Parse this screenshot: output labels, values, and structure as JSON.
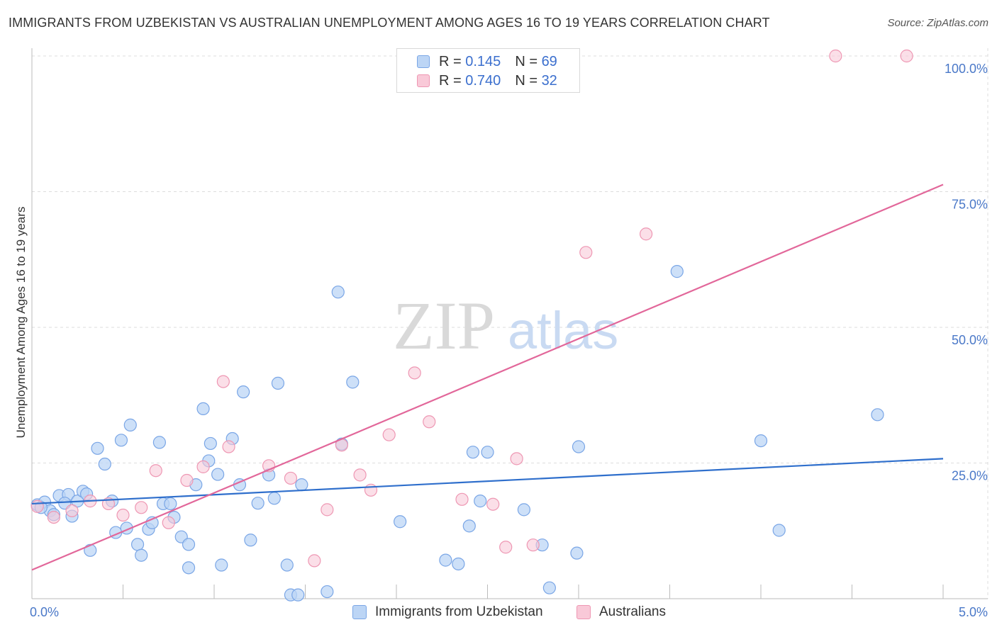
{
  "title": "IMMIGRANTS FROM UZBEKISTAN VS AUSTRALIAN UNEMPLOYMENT AMONG AGES 16 TO 19 YEARS CORRELATION CHART",
  "source": "Source: ZipAtlas.com",
  "watermark": {
    "zip": "ZIP",
    "atlas": "atlas"
  },
  "legend": {
    "r_label": "R =",
    "n_label": "N =",
    "series": [
      {
        "name": "Immigrants from Uzbekistan",
        "r": "0.145",
        "n": "69"
      },
      {
        "name": "Australians",
        "r": "0.740",
        "n": "32"
      }
    ]
  },
  "colors": {
    "blue_fill": "#bcd5f5",
    "blue_stroke": "#7aa6e6",
    "blue_line": "#2f6fcc",
    "pink_fill": "#f9c9d8",
    "pink_stroke": "#ee97b3",
    "pink_line": "#e2679a",
    "tick_text": "#4a78c8",
    "grid": "#dddddd"
  },
  "chart_data": {
    "type": "scatter",
    "title": "IMMIGRANTS FROM UZBEKISTAN VS AUSTRALIAN UNEMPLOYMENT AMONG AGES 16 TO 19 YEARS CORRELATION CHART",
    "xlabel": "",
    "ylabel": "Unemployment Among Ages 16 to 19 years",
    "xlim": [
      0,
      5
    ],
    "ylim": [
      0,
      100
    ],
    "x_tick_labels": [
      "0.0%",
      "5.0%"
    ],
    "y_ticks": [
      25,
      50,
      75,
      100
    ],
    "y_tick_labels": [
      "25.0%",
      "50.0%",
      "75.0%",
      "100.0%"
    ],
    "series": [
      {
        "name": "Immigrants from Uzbekistan",
        "trend": {
          "x0": 0,
          "y0": 17.5,
          "x1": 5,
          "y1": 25.8
        },
        "points": [
          [
            0.03,
            17.3
          ],
          [
            0.07,
            17.8
          ],
          [
            0.1,
            16.2
          ],
          [
            0.12,
            15.5
          ],
          [
            0.15,
            19.0
          ],
          [
            0.2,
            19.2
          ],
          [
            0.22,
            15.2
          ],
          [
            0.25,
            18.0
          ],
          [
            0.28,
            19.8
          ],
          [
            0.3,
            19.3
          ],
          [
            0.32,
            8.9
          ],
          [
            0.36,
            27.7
          ],
          [
            0.4,
            24.8
          ],
          [
            0.44,
            18.0
          ],
          [
            0.46,
            12.2
          ],
          [
            0.49,
            29.2
          ],
          [
            0.52,
            13.0
          ],
          [
            0.54,
            32.0
          ],
          [
            0.58,
            10.0
          ],
          [
            0.6,
            8.0
          ],
          [
            0.64,
            12.8
          ],
          [
            0.66,
            14.0
          ],
          [
            0.7,
            28.8
          ],
          [
            0.72,
            17.5
          ],
          [
            0.76,
            17.5
          ],
          [
            0.78,
            15.0
          ],
          [
            0.82,
            11.4
          ],
          [
            0.86,
            10.0
          ],
          [
            0.86,
            5.7
          ],
          [
            0.9,
            21.0
          ],
          [
            0.94,
            35.0
          ],
          [
            0.97,
            25.4
          ],
          [
            0.98,
            28.6
          ],
          [
            1.02,
            22.9
          ],
          [
            1.04,
            6.2
          ],
          [
            1.1,
            29.5
          ],
          [
            1.14,
            21.0
          ],
          [
            1.16,
            38.1
          ],
          [
            1.2,
            10.8
          ],
          [
            1.24,
            17.6
          ],
          [
            1.3,
            22.8
          ],
          [
            1.33,
            18.5
          ],
          [
            1.35,
            39.7
          ],
          [
            1.4,
            6.2
          ],
          [
            1.42,
            0.7
          ],
          [
            1.46,
            0.7
          ],
          [
            1.48,
            21.0
          ],
          [
            1.62,
            1.3
          ],
          [
            1.68,
            56.5
          ],
          [
            1.7,
            28.5
          ],
          [
            1.76,
            39.9
          ],
          [
            2.02,
            14.2
          ],
          [
            2.27,
            7.1
          ],
          [
            2.34,
            6.4
          ],
          [
            2.4,
            13.4
          ],
          [
            2.42,
            27.0
          ],
          [
            2.46,
            18.0
          ],
          [
            2.5,
            27.0
          ],
          [
            2.7,
            16.4
          ],
          [
            2.8,
            9.9
          ],
          [
            2.84,
            2.0
          ],
          [
            2.99,
            8.4
          ],
          [
            3.0,
            28.0
          ],
          [
            3.54,
            60.3
          ],
          [
            4.0,
            29.1
          ],
          [
            4.1,
            12.6
          ],
          [
            4.64,
            33.9
          ],
          [
            0.05,
            16.8
          ],
          [
            0.18,
            17.6
          ]
        ]
      },
      {
        "name": "Australians",
        "trend": {
          "x0": 0,
          "y0": 5.3,
          "x1": 5,
          "y1": 76.3
        },
        "points": [
          [
            0.03,
            17.0
          ],
          [
            0.12,
            15.0
          ],
          [
            0.22,
            16.2
          ],
          [
            0.32,
            18.0
          ],
          [
            0.42,
            17.5
          ],
          [
            0.5,
            15.4
          ],
          [
            0.6,
            16.8
          ],
          [
            0.68,
            23.6
          ],
          [
            0.75,
            14.0
          ],
          [
            0.85,
            21.8
          ],
          [
            0.94,
            24.3
          ],
          [
            1.05,
            40.0
          ],
          [
            1.08,
            28.0
          ],
          [
            1.3,
            24.5
          ],
          [
            1.42,
            22.2
          ],
          [
            1.55,
            7.0
          ],
          [
            1.62,
            16.4
          ],
          [
            1.7,
            28.3
          ],
          [
            1.8,
            22.8
          ],
          [
            1.86,
            20.0
          ],
          [
            1.96,
            30.2
          ],
          [
            2.1,
            41.6
          ],
          [
            2.18,
            32.6
          ],
          [
            2.36,
            18.3
          ],
          [
            2.53,
            17.4
          ],
          [
            2.6,
            9.5
          ],
          [
            2.66,
            25.8
          ],
          [
            2.75,
            9.9
          ],
          [
            3.04,
            63.8
          ],
          [
            3.37,
            67.2
          ],
          [
            4.41,
            100.0
          ],
          [
            4.8,
            100.0
          ]
        ]
      }
    ]
  }
}
